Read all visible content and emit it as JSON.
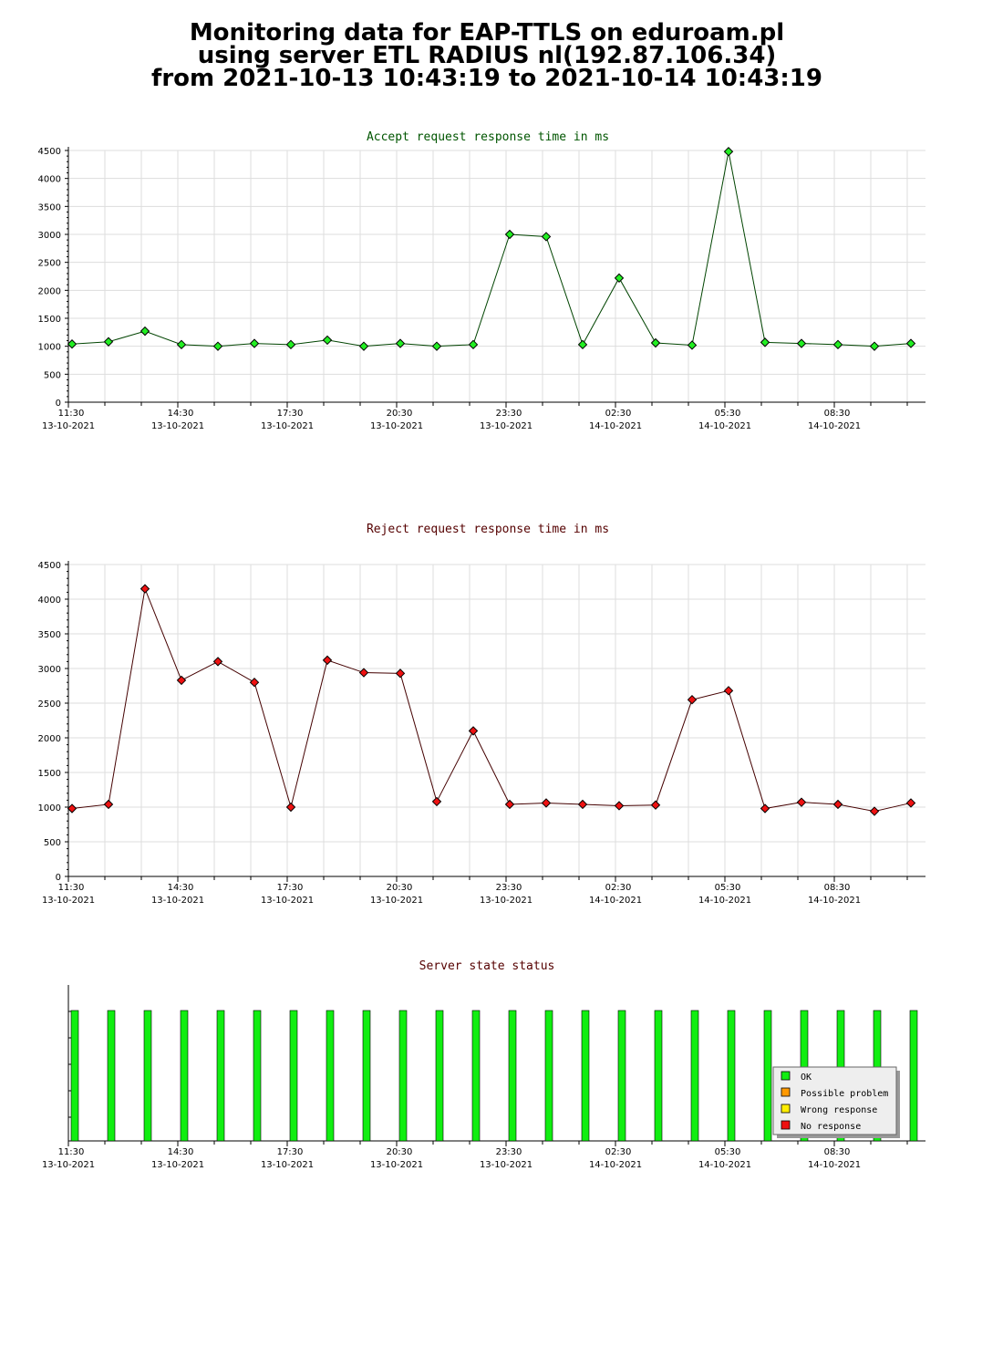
{
  "page_title": {
    "line1": "Monitoring data for EAP-TTLS on eduroam.pl",
    "line2": "using server ETL RADIUS nl(192.87.106.34)",
    "line3": "from 2021-10-13 10:43:19 to 2021-10-14 10:43:19"
  },
  "colors": {
    "accept_title": "#005500",
    "reject_title": "#550000",
    "status_title": "#550000",
    "accept_marker": "#22ee22",
    "reject_marker": "#ee1111",
    "accept_line": "#004400",
    "reject_line": "#440000",
    "grid": "#dddddd",
    "ok": "#11ee11",
    "possible_problem": "#ff9900",
    "wrong_response": "#ffee00",
    "no_response": "#ee1111"
  },
  "x_axis": {
    "ticks": [
      {
        "time": "11:30",
        "date": "13-10-2021"
      },
      {
        "time": "14:30",
        "date": "13-10-2021"
      },
      {
        "time": "17:30",
        "date": "13-10-2021"
      },
      {
        "time": "20:30",
        "date": "13-10-2021"
      },
      {
        "time": "23:30",
        "date": "13-10-2021"
      },
      {
        "time": "02:30",
        "date": "14-10-2021"
      },
      {
        "time": "05:30",
        "date": "14-10-2021"
      },
      {
        "time": "08:30",
        "date": "14-10-2021"
      }
    ]
  },
  "chart_data": [
    {
      "type": "line",
      "title": "Accept request response time in ms",
      "x": [
        "11:30",
        "12:30",
        "13:30",
        "14:30",
        "15:30",
        "16:30",
        "17:30",
        "18:30",
        "19:30",
        "20:30",
        "21:30",
        "22:30",
        "23:30",
        "00:30",
        "01:30",
        "02:30",
        "03:30",
        "04:30",
        "05:30",
        "06:30",
        "07:30",
        "08:30",
        "09:30",
        "10:30"
      ],
      "values": [
        1040,
        1080,
        1270,
        1030,
        1000,
        1050,
        1030,
        1110,
        1000,
        1050,
        1000,
        1030,
        3000,
        2960,
        1030,
        2220,
        1060,
        1020,
        4480,
        1070,
        1050,
        1030,
        1000,
        1050
      ],
      "ylim": [
        0,
        4500
      ],
      "yticks": [
        "0",
        "500",
        "1000",
        "1500",
        "2000",
        "2500",
        "3000",
        "3500",
        "4000",
        "4500"
      ],
      "grid": true
    },
    {
      "type": "line",
      "title": "Reject request response time in ms",
      "x": [
        "11:30",
        "12:30",
        "13:30",
        "14:30",
        "15:30",
        "16:30",
        "17:30",
        "18:30",
        "19:30",
        "20:30",
        "21:30",
        "22:30",
        "23:30",
        "00:30",
        "01:30",
        "02:30",
        "03:30",
        "04:30",
        "05:30",
        "06:30",
        "07:30",
        "08:30",
        "09:30",
        "10:30"
      ],
      "values": [
        980,
        1040,
        4150,
        2830,
        3100,
        2800,
        1000,
        3120,
        2940,
        2930,
        1080,
        2100,
        1040,
        1060,
        1040,
        1020,
        1030,
        2550,
        2680,
        980,
        1070,
        1040,
        940,
        1060
      ],
      "ylim": [
        0,
        4500
      ],
      "yticks": [
        "0",
        "500",
        "1000",
        "1500",
        "2000",
        "2500",
        "3000",
        "3500",
        "4000",
        "4500"
      ],
      "grid": true
    },
    {
      "type": "bar",
      "title": "Server state status",
      "x": [
        "11:30",
        "12:30",
        "13:30",
        "14:30",
        "15:30",
        "16:30",
        "17:30",
        "18:30",
        "19:30",
        "20:30",
        "21:30",
        "22:30",
        "23:30",
        "00:30",
        "01:30",
        "02:30",
        "03:30",
        "04:30",
        "05:30",
        "06:30",
        "07:30",
        "08:30",
        "09:30",
        "10:30"
      ],
      "states": [
        "OK",
        "OK",
        "OK",
        "OK",
        "OK",
        "OK",
        "OK",
        "OK",
        "OK",
        "OK",
        "OK",
        "OK",
        "OK",
        "OK",
        "OK",
        "OK",
        "OK",
        "OK",
        "OK",
        "OK",
        "OK",
        "OK",
        "OK",
        "OK"
      ],
      "legend": {
        "placement": "bottom-right",
        "entries": [
          "OK",
          "Possible problem",
          "Wrong response",
          "No response"
        ]
      }
    }
  ]
}
